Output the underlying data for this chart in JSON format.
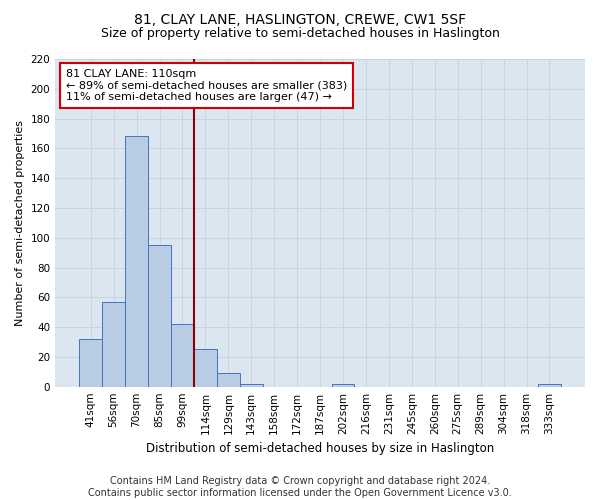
{
  "title": "81, CLAY LANE, HASLINGTON, CREWE, CW1 5SF",
  "subtitle": "Size of property relative to semi-detached houses in Haslington",
  "xlabel": "Distribution of semi-detached houses by size in Haslington",
  "ylabel": "Number of semi-detached properties",
  "categories": [
    "41sqm",
    "56sqm",
    "70sqm",
    "85sqm",
    "99sqm",
    "114sqm",
    "129sqm",
    "143sqm",
    "158sqm",
    "172sqm",
    "187sqm",
    "202sqm",
    "216sqm",
    "231sqm",
    "245sqm",
    "260sqm",
    "275sqm",
    "289sqm",
    "304sqm",
    "318sqm",
    "333sqm"
  ],
  "values": [
    32,
    57,
    168,
    95,
    42,
    25,
    9,
    2,
    0,
    0,
    0,
    2,
    0,
    0,
    0,
    0,
    0,
    0,
    0,
    0,
    2
  ],
  "bar_color": "#b8cce4",
  "bar_edge_color": "#4472c4",
  "grid_color": "#c8d4e4",
  "background_color": "#dce6f1",
  "fig_background": "#ffffff",
  "annotation_line1": "81 CLAY LANE: 110sqm",
  "annotation_line2": "← 89% of semi-detached houses are smaller (383)",
  "annotation_line3": "11% of semi-detached houses are larger (47) →",
  "annotation_box_color": "#ffffff",
  "annotation_box_edge": "#cc0000",
  "vline_color": "#8b0000",
  "footer_text": "Contains HM Land Registry data © Crown copyright and database right 2024.\nContains public sector information licensed under the Open Government Licence v3.0.",
  "ylim": [
    0,
    220
  ],
  "yticks": [
    0,
    20,
    40,
    60,
    80,
    100,
    120,
    140,
    160,
    180,
    200,
    220
  ],
  "title_fontsize": 10,
  "subtitle_fontsize": 9,
  "ylabel_fontsize": 8,
  "xlabel_fontsize": 8.5,
  "tick_fontsize": 7.5,
  "footer_fontsize": 7,
  "ann_fontsize": 8
}
